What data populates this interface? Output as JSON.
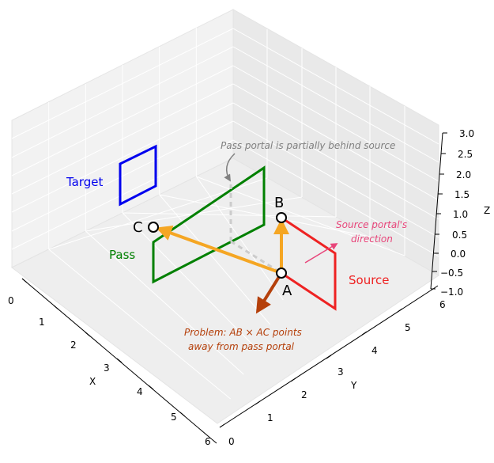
{
  "axes": {
    "x_label": "X",
    "y_label": "Y",
    "z_label": "Z",
    "x_ticks": [
      "0",
      "1",
      "2",
      "3",
      "4",
      "5",
      "6"
    ],
    "y_ticks": [
      "0",
      "1",
      "2",
      "3",
      "4",
      "5",
      "6"
    ],
    "z_ticks": [
      "−1.0",
      "−0.5",
      "0.0",
      "0.5",
      "1.0",
      "1.5",
      "2.0",
      "2.5",
      "3.0"
    ],
    "grid": true
  },
  "portals": {
    "target": {
      "label": "Target",
      "color": "#0000ee"
    },
    "pass": {
      "label": "Pass",
      "color": "#008000"
    },
    "source": {
      "label": "Source",
      "color": "#ee2222"
    }
  },
  "points": {
    "a": "A",
    "b": "B",
    "c": "C"
  },
  "annotations": {
    "pass_behind": "Pass portal is partially behind source",
    "source_dir_line1": "Source portal's",
    "source_dir_line2": "direction",
    "problem_line1": "Problem: AB × AC points",
    "problem_line2": "away from pass portal"
  },
  "colors": {
    "vector": "#f5a623",
    "cross": "#b5400b",
    "source_dir": "#e8457a",
    "note_gray": "#808080",
    "problem_text": "#b5400b"
  }
}
